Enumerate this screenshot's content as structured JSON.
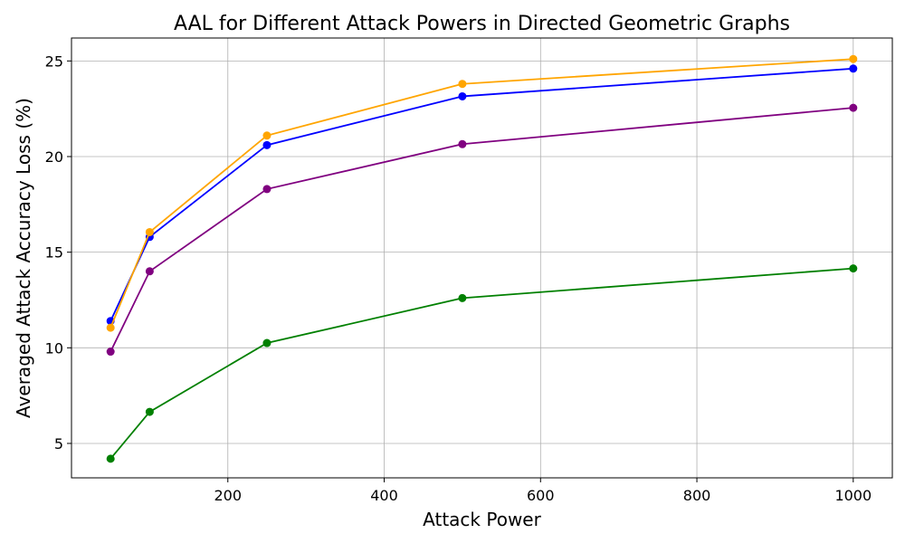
{
  "chart_data": {
    "type": "line",
    "title": "AAL for Different Attack Powers in Directed Geometric Graphs",
    "xlabel": "Attack Power",
    "ylabel": "Averaged Attack Accuracy Loss (%)",
    "xlim": [
      0,
      1050
    ],
    "ylim": [
      3.2,
      26.2
    ],
    "xticks": [
      200,
      400,
      600,
      800,
      1000
    ],
    "yticks": [
      5,
      10,
      15,
      20,
      25
    ],
    "grid": true,
    "x": [
      50,
      100,
      250,
      500,
      1000
    ],
    "series": [
      {
        "color": "#0000ff",
        "values": [
          11.4,
          15.8,
          20.6,
          23.15,
          24.6
        ]
      },
      {
        "color": "#ffa500",
        "values": [
          11.05,
          16.05,
          21.1,
          23.8,
          25.1
        ]
      },
      {
        "color": "#800080",
        "values": [
          9.8,
          14.0,
          18.3,
          20.65,
          22.55
        ]
      },
      {
        "color": "#008000",
        "values": [
          4.2,
          6.65,
          10.25,
          12.6,
          14.15
        ]
      }
    ]
  }
}
